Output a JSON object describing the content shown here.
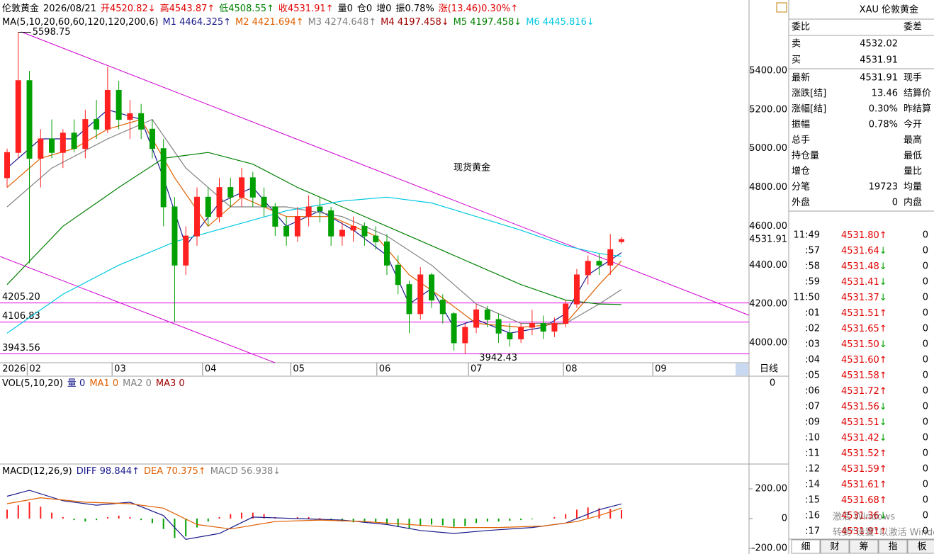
{
  "header": [
    {
      "text": "伦敦黄金",
      "color": "#000000"
    },
    {
      "text": "2026/08/21",
      "color": "#000000"
    },
    {
      "text": "开4520.82↓",
      "color": "#e00000"
    },
    {
      "text": "高4543.87↑",
      "color": "#e00000"
    },
    {
      "text": "低4508.55↑",
      "color": "#008000"
    },
    {
      "text": "收4531.91↑",
      "color": "#e00000"
    },
    {
      "text": "量0",
      "color": "#000000"
    },
    {
      "text": "仓0",
      "color": "#000000"
    },
    {
      "text": "增0",
      "color": "#000000"
    },
    {
      "text": "振0.78%",
      "color": "#000000"
    },
    {
      "text": "涨(13.46)0.30%↑",
      "color": "#e00000"
    }
  ],
  "ma_legend": [
    {
      "text": "MA(5,10,20,60,60,120,120,200,6)",
      "color": "#000000"
    },
    {
      "text": "M1 4464.325↑",
      "color": "#1a1a8c"
    },
    {
      "text": "M2 4421.694↑",
      "color": "#e06000"
    },
    {
      "text": "M3 4274.648↑",
      "color": "#808080"
    },
    {
      "text": "M4 4197.458↓",
      "color": "#a00000"
    },
    {
      "text": "M5 4197.458↓",
      "color": "#008000"
    },
    {
      "text": "M6 4445.816↓",
      "color": "#00c8e0"
    }
  ],
  "chart_data": {
    "type": "candlestick",
    "annotation": "现货黄金",
    "period": "日线",
    "up_color": "#ff2020",
    "down_color": "#00a000",
    "open": [
      4850,
      4980,
      5350,
      4950,
      5050,
      4980,
      5080,
      5000,
      5150,
      5100,
      5300,
      5150,
      5180,
      5100,
      5000,
      4700,
      4400,
      4550,
      4750,
      4650,
      4800,
      4750,
      4850,
      4750,
      4700,
      4600,
      4550,
      4650,
      4700,
      4680,
      4550,
      4580,
      4600,
      4550,
      4520,
      4400,
      4300,
      4150,
      4350,
      4220,
      4150,
      4000,
      4080,
      4170,
      4120,
      4050,
      4020,
      4080,
      4100,
      4060,
      4100,
      4200,
      4350,
      4420,
      4400,
      4520.82
    ],
    "high": [
      5000,
      5598.75,
      5400,
      5100,
      5150,
      5100,
      5150,
      5200,
      5250,
      5420,
      5350,
      5250,
      5230,
      5150,
      5050,
      4750,
      4600,
      4800,
      4800,
      4850,
      4850,
      4900,
      4880,
      4800,
      4720,
      4650,
      4700,
      4760,
      4750,
      4700,
      4620,
      4650,
      4620,
      4600,
      4560,
      4450,
      4320,
      4390,
      4360,
      4250,
      4160,
      4100,
      4200,
      4190,
      4150,
      4100,
      4100,
      4170,
      4140,
      4130,
      4220,
      4380,
      4450,
      4460,
      4560,
      4543.87
    ],
    "low": [
      4800,
      4950,
      4410,
      4800,
      4950,
      4900,
      4980,
      4950,
      5050,
      5080,
      5100,
      5050,
      5050,
      4950,
      4600,
      4106.83,
      4350,
      4500,
      4600,
      4620,
      4700,
      4700,
      4700,
      4650,
      4550,
      4500,
      4520,
      4600,
      4620,
      4500,
      4500,
      4520,
      4500,
      4480,
      4350,
      4250,
      4050,
      4120,
      4180,
      4100,
      3960,
      3942.43,
      4050,
      4080,
      4000,
      3980,
      4000,
      4040,
      4020,
      4030,
      4080,
      4180,
      4300,
      4350,
      4350,
      4508.55
    ],
    "close": [
      4980,
      5350,
      4950,
      5050,
      4980,
      5080,
      5000,
      5150,
      5100,
      5300,
      5150,
      5180,
      5100,
      5000,
      4700,
      4400,
      4550,
      4750,
      4650,
      4800,
      4750,
      4850,
      4750,
      4700,
      4600,
      4550,
      4650,
      4700,
      4680,
      4550,
      4580,
      4600,
      4550,
      4520,
      4400,
      4300,
      4150,
      4350,
      4220,
      4150,
      4000,
      4080,
      4170,
      4120,
      4050,
      4020,
      4080,
      4100,
      4060,
      4100,
      4200,
      4350,
      4420,
      4400,
      4480,
      4531.91
    ],
    "ylim": [
      3905,
      5619
    ],
    "yticks": [
      {
        "value": 4000,
        "label": "4000.00"
      },
      {
        "value": 4200,
        "label": "4200.00"
      },
      {
        "value": 4400,
        "label": "4400.00"
      },
      {
        "value": 4600,
        "label": "4600.00"
      },
      {
        "value": 4800,
        "label": "4800.00"
      },
      {
        "value": 5000,
        "label": "5000.00"
      },
      {
        "value": 5200,
        "label": "5200.00"
      },
      {
        "value": 5400,
        "label": "5400.00"
      }
    ],
    "x_year": "2026",
    "xticks": [
      {
        "value": 1.8,
        "label": "02"
      },
      {
        "value": 9.4,
        "label": "03"
      },
      {
        "value": 17.5,
        "label": "04"
      },
      {
        "value": 25.4,
        "label": "05"
      },
      {
        "value": 33.1,
        "label": "06"
      },
      {
        "value": 41.3,
        "label": "07"
      },
      {
        "value": 49.8,
        "label": "08"
      },
      {
        "value": 57.8,
        "label": "09"
      }
    ],
    "series": [
      {
        "name": "M1",
        "color": "#1a1a8c",
        "x": [
          0,
          3,
          6,
          9,
          12,
          14,
          16,
          19,
          22,
          25,
          28,
          31,
          34,
          36,
          38,
          40,
          42,
          45,
          48,
          50,
          52,
          55
        ],
        "values": [
          4900,
          5050,
          5050,
          5200,
          5150,
          4850,
          4500,
          4720,
          4800,
          4600,
          4680,
          4580,
          4450,
          4200,
          4280,
          4080,
          4120,
          4050,
          4080,
          4150,
          4350,
          4464.325
        ]
      },
      {
        "name": "M2",
        "color": "#e06000",
        "x": [
          0,
          3,
          6,
          9,
          12,
          15,
          18,
          21,
          25,
          29,
          33,
          36,
          39,
          42,
          46,
          50,
          53,
          55
        ],
        "values": [
          4800,
          4950,
          5000,
          5100,
          5150,
          4850,
          4600,
          4750,
          4650,
          4650,
          4550,
          4350,
          4230,
          4100,
          4080,
          4100,
          4300,
          4421.694
        ]
      },
      {
        "name": "M3",
        "color": "#808080",
        "x": [
          0,
          4,
          9,
          13,
          16,
          20,
          25,
          30,
          34,
          38,
          42,
          46,
          50,
          53,
          55
        ],
        "values": [
          4700,
          4900,
          5050,
          5150,
          4900,
          4700,
          4700,
          4650,
          4550,
          4400,
          4200,
          4100,
          4100,
          4200,
          4274.648
        ]
      },
      {
        "name": "M5",
        "color": "#008000",
        "x": [
          0,
          5,
          10,
          14,
          18,
          22,
          26,
          30,
          34,
          38,
          42,
          46,
          50,
          53,
          55
        ],
        "values": [
          4300,
          4600,
          4800,
          4950,
          4980,
          4920,
          4800,
          4700,
          4600,
          4500,
          4400,
          4300,
          4220,
          4200,
          4197.458
        ]
      },
      {
        "name": "M6",
        "color": "#00c8e0",
        "x": [
          0,
          5,
          10,
          15,
          20,
          25,
          30,
          34,
          38,
          42,
          46,
          50,
          53,
          55
        ],
        "values": [
          4050,
          4250,
          4400,
          4520,
          4600,
          4680,
          4730,
          4750,
          4720,
          4650,
          4580,
          4500,
          4460,
          4445.816
        ]
      }
    ],
    "levels": [
      {
        "value": 4205.2,
        "label": "4205.20"
      },
      {
        "value": 4106.83,
        "label": "4106.83"
      },
      {
        "value": 3943.56,
        "label": "3943.56"
      }
    ],
    "level_color": "#e000e0",
    "high_label": {
      "value": 5598.75,
      "label": "5598.75"
    },
    "low_label": {
      "value": 3942.43,
      "label": "3942.43"
    },
    "current_price": {
      "value": 4531.91,
      "label": "4531.91"
    }
  },
  "volume": {
    "legend": [
      {
        "text": "VOL(5,10,20)",
        "color": "#000000"
      },
      {
        "text": "量 0",
        "color": "#1a1a8c"
      },
      {
        "text": "MA1 0",
        "color": "#e06000"
      },
      {
        "text": "MA2 0",
        "color": "#808080"
      },
      {
        "text": "MA3 0",
        "color": "#a00000"
      }
    ],
    "yticks": [
      0
    ]
  },
  "macd": {
    "legend": [
      {
        "text": "MACD(12,26,9)",
        "color": "#000000"
      },
      {
        "text": "DIFF 98.844↑",
        "color": "#1a1a8c"
      },
      {
        "text": "DEA 70.375↑",
        "color": "#e06000"
      },
      {
        "text": "MACD 56.938↓",
        "color": "#808080"
      }
    ],
    "ylim": [
      -219,
      343
    ],
    "yticks": [
      {
        "value": 200,
        "label": "200.00"
      },
      0,
      {
        "value": -200,
        "label": "-200.00"
      }
    ],
    "histogram": [
      60,
      90,
      110,
      80,
      40,
      10,
      -10,
      -20,
      -10,
      10,
      20,
      10,
      -10,
      -30,
      -70,
      -130,
      -120,
      -60,
      -20,
      10,
      30,
      40,
      40,
      30,
      10,
      5,
      10,
      10,
      5,
      -10,
      -20,
      -25,
      -20,
      -25,
      -40,
      -55,
      -70,
      -50,
      -40,
      -45,
      -55,
      -50,
      -30,
      -20,
      -20,
      -15,
      -10,
      -5,
      0,
      10,
      30,
      60,
      75,
      70,
      65,
      56.938
    ],
    "series": [
      {
        "name": "DIFF",
        "color": "#1a1a8c",
        "x": [
          0,
          2,
          5,
          8,
          11,
          14,
          16,
          19,
          22,
          26,
          30,
          34,
          37,
          40,
          43,
          47,
          50,
          53,
          55
        ],
        "values": [
          150,
          190,
          120,
          90,
          110,
          20,
          -140,
          -100,
          10,
          0,
          -10,
          -40,
          -80,
          -100,
          -80,
          -60,
          -30,
          60,
          98.844
        ]
      },
      {
        "name": "DEA",
        "color": "#e06000",
        "x": [
          0,
          3,
          7,
          11,
          14,
          17,
          20,
          24,
          28,
          32,
          36,
          40,
          44,
          48,
          51,
          53,
          55
        ],
        "values": [
          100,
          140,
          110,
          100,
          70,
          -40,
          -70,
          -20,
          -10,
          -20,
          -40,
          -60,
          -60,
          -50,
          -20,
          20,
          70.375
        ]
      }
    ]
  },
  "quote": {
    "title": "XAU",
    "name": "伦敦黄金",
    "rows": [
      {
        "label": "委比",
        "right": "委差"
      },
      {
        "label": "卖",
        "value": "4532.02",
        "color": "#e00000"
      },
      {
        "label": "买",
        "value": "4531.91",
        "color": "#e00000"
      },
      {
        "label": "最新",
        "value": "4531.91",
        "color": "#e00000",
        "right": "现手"
      },
      {
        "label": "涨跌[结]",
        "value": "13.46",
        "color": "#e00000",
        "right": "结算价"
      },
      {
        "label": "涨幅[结]",
        "value": "0.30%",
        "color": "#e00000",
        "right": "昨结算"
      },
      {
        "label": "振幅",
        "value": "0.78%",
        "color": "#000000",
        "right": "今开"
      },
      {
        "label": "总手",
        "right": "最高"
      },
      {
        "label": "持仓量",
        "right": "最低"
      },
      {
        "label": "增仓",
        "right": "量比"
      },
      {
        "label": "分笔",
        "value": "19723",
        "color": "#000000",
        "right": "均量"
      },
      {
        "label": "外盘",
        "value": "0",
        "color": "#e00000",
        "right": "内盘"
      }
    ]
  },
  "trades": [
    {
      "time": "11:49",
      "price": "4531.80",
      "dir": "↑",
      "vol": "0"
    },
    {
      "time": ":57",
      "price": "4531.64",
      "dir": "↓",
      "vol": "0"
    },
    {
      "time": ":58",
      "price": "4531.48",
      "dir": "↓",
      "vol": "0"
    },
    {
      "time": ":59",
      "price": "4531.41",
      "dir": "↓",
      "vol": "0"
    },
    {
      "time": "11:50",
      "price": "4531.37",
      "dir": "↓",
      "vol": "0"
    },
    {
      "time": ":01",
      "price": "4531.51",
      "dir": "↑",
      "vol": "0"
    },
    {
      "time": ":02",
      "price": "4531.65",
      "dir": "↑",
      "vol": "0"
    },
    {
      "time": ":03",
      "price": "4531.50",
      "dir": "↓",
      "vol": "0"
    },
    {
      "time": ":04",
      "price": "4531.60",
      "dir": "↑",
      "vol": "0"
    },
    {
      "time": ":05",
      "price": "4531.58",
      "dir": "↑",
      "vol": "0"
    },
    {
      "time": ":06",
      "price": "4531.72",
      "dir": "↑",
      "vol": "0"
    },
    {
      "time": ":07",
      "price": "4531.56",
      "dir": "↓",
      "vol": "0"
    },
    {
      "time": ":09",
      "price": "4531.51",
      "dir": "↓",
      "vol": "0"
    },
    {
      "time": ":10",
      "price": "4531.42",
      "dir": "↓",
      "vol": "0"
    },
    {
      "time": ":11",
      "price": "4531.52",
      "dir": "↑",
      "vol": "0"
    },
    {
      "time": ":12",
      "price": "4531.59",
      "dir": "↑",
      "vol": "0"
    },
    {
      "time": ":14",
      "price": "4531.61",
      "dir": "↑",
      "vol": "0"
    },
    {
      "time": ":15",
      "price": "4531.68",
      "dir": "↑",
      "vol": "0"
    },
    {
      "time": ":16",
      "price": "4531.36",
      "dir": "↓",
      "vol": "0"
    },
    {
      "time": ":17",
      "price": "4531.91",
      "dir": "↑",
      "vol": "0"
    }
  ],
  "tabs": [
    "细",
    "财",
    "筹",
    "指",
    "板"
  ],
  "watermark": [
    "激活 Windows",
    "转到“设置”以激活 Windows。"
  ]
}
